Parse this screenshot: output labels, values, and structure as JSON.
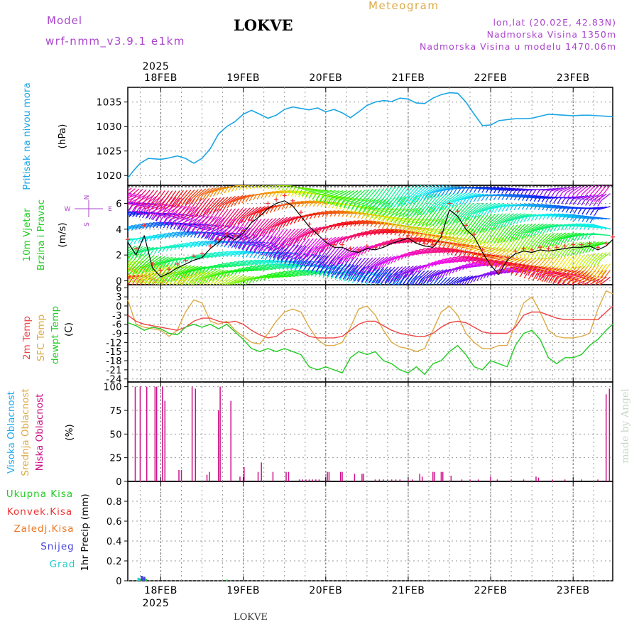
{
  "header": {
    "model_label": "Model",
    "model_name": "wrf-nmm_v3.9.1  e1km",
    "station_title": "LOKVE",
    "meteogram_label": "Meteogram",
    "coords": "lon,lat (20.02E, 42.83N)",
    "elevation": "Nadmorska Visina 1350m",
    "model_elevation": "Nadmorska Visina u modelu 1470.06m"
  },
  "footer": {
    "station": "LOKVE",
    "credit": "made by Angel"
  },
  "colors": {
    "pressure": "#1aa6e6",
    "wind_label": "#22cc22",
    "wind_speed_line": "#000000",
    "wind_gust": "#ee3333",
    "temp2m": "#ee4444",
    "sfc_temp": "#ddaa44",
    "dewpoint": "#22cc22",
    "high_cloud": "#22aaee",
    "mid_cloud": "#ddaa44",
    "low_cloud": "#cc1188",
    "total_precip": "#22cc22",
    "convective_precip": "#ee3333",
    "freezing_precip": "#ee7722",
    "snow": "#4444dd",
    "hail": "#22cccc",
    "header_purple": "#aa44cc",
    "meteogram_gold": "#ddaa44"
  },
  "chart_data": [
    {
      "type": "line",
      "panel": "pressure",
      "ylabel_lines": [
        "Pritisak na nivou mora"
      ],
      "unit": "(hPa)",
      "ylim": [
        1018,
        1038
      ],
      "yticks": [
        1020,
        1025,
        1030,
        1035
      ],
      "x_range_days": [
        17.6,
        23.48
      ],
      "x_ticks_top": [
        "18FEB",
        "19FEB",
        "20FEB",
        "21FEB",
        "22FEB",
        "23FEB"
      ],
      "x_ticks_bottom": [
        "18FEB",
        "19FEB",
        "20FEB",
        "21FEB",
        "22FEB",
        "23FEB"
      ],
      "year_label": "2025",
      "grid": true,
      "series": [
        {
          "x": [
            17.6,
            17.67,
            17.75,
            17.85,
            18.0,
            18.1,
            18.2,
            18.3,
            18.4,
            18.5,
            18.6,
            18.7,
            18.8,
            18.9,
            19.0,
            19.1,
            19.2,
            19.3,
            19.4,
            19.5,
            19.6,
            19.7,
            19.8,
            19.9,
            20.0,
            20.1,
            20.2,
            20.3,
            20.4,
            20.5,
            20.6,
            20.7,
            20.8,
            20.9,
            21.0,
            21.1,
            21.2,
            21.3,
            21.4,
            21.5,
            21.6,
            21.7,
            21.8,
            21.9,
            22.0,
            22.1,
            22.2,
            22.3,
            22.4,
            22.5,
            22.6,
            22.7,
            22.8,
            22.9,
            23.0,
            23.1,
            23.2,
            23.3,
            23.4,
            23.48
          ],
          "y": [
            1019.5,
            1021,
            1022.5,
            1023.5,
            1023.3,
            1023.6,
            1024,
            1023.5,
            1022.5,
            1023.5,
            1025.5,
            1028.5,
            1030,
            1031,
            1032.5,
            1033.3,
            1032.5,
            1031.7,
            1032.3,
            1033.5,
            1034,
            1033.7,
            1033.4,
            1033.8,
            1033,
            1033.5,
            1032.8,
            1031.8,
            1033,
            1034.3,
            1035,
            1035.3,
            1035.1,
            1035.8,
            1035.6,
            1034.8,
            1034.7,
            1035.8,
            1036.5,
            1036.9,
            1036.8,
            1035,
            1032.5,
            1030.2,
            1030.3,
            1031.2,
            1031.4,
            1031.6,
            1031.6,
            1031.7,
            1032.1,
            1032.5,
            1032.4,
            1032.3,
            1032.2,
            1032.3,
            1032.3,
            1032.2,
            1032.1,
            1032
          ]
        }
      ]
    },
    {
      "type": "line",
      "panel": "wind",
      "ylabel_lines": [
        "10m Vjetar",
        "Brzina i Pravac"
      ],
      "unit": "(m/s)",
      "direction_key": [
        "N",
        "E",
        "W",
        "S"
      ],
      "ylim": [
        -0.3,
        7.4
      ],
      "yticks": [
        0,
        2,
        4,
        6
      ],
      "grid": true,
      "series": [
        {
          "name": "speed",
          "x": [
            17.6,
            17.7,
            17.8,
            17.9,
            18.0,
            18.1,
            18.2,
            18.3,
            18.4,
            18.5,
            18.6,
            18.7,
            18.8,
            18.9,
            19.0,
            19.1,
            19.2,
            19.3,
            19.4,
            19.5,
            19.6,
            19.7,
            19.8,
            19.9,
            20.0,
            20.1,
            20.2,
            20.3,
            20.4,
            20.5,
            20.6,
            20.7,
            20.8,
            20.9,
            21.0,
            21.1,
            21.2,
            21.3,
            21.4,
            21.5,
            21.6,
            21.7,
            21.8,
            21.9,
            22.0,
            22.1,
            22.2,
            22.3,
            22.4,
            22.5,
            22.6,
            22.7,
            22.8,
            22.9,
            23.0,
            23.1,
            23.2,
            23.3,
            23.4,
            23.48
          ],
          "y": [
            3,
            2,
            3.5,
            1,
            0.3,
            0.6,
            1,
            1.3,
            1.6,
            1.8,
            2.5,
            3,
            3.5,
            3.2,
            3.7,
            4.5,
            5,
            5.6,
            6,
            6.2,
            5.8,
            5,
            4.2,
            3.6,
            3,
            2.6,
            2.6,
            2.3,
            2.2,
            2.5,
            2.4,
            2.6,
            2.9,
            3.1,
            3.3,
            2.9,
            2.7,
            2.6,
            3.4,
            5.5,
            5,
            4,
            3.4,
            2.2,
            1.2,
            0.5,
            1.6,
            2.1,
            2.3,
            2.2,
            2.4,
            2.3,
            2.4,
            2.5,
            2.6,
            2.6,
            2.7,
            2.4,
            2.7,
            3.2
          ]
        },
        {
          "name": "gust",
          "x": [
            17.6,
            17.7,
            17.8,
            17.9,
            18.0,
            18.1,
            18.2,
            18.3,
            18.4,
            18.5,
            18.6,
            18.7,
            18.8,
            18.9,
            19.0,
            19.1,
            19.2,
            19.3,
            19.4,
            19.5,
            19.6,
            19.7,
            19.8,
            19.9,
            20.0,
            20.1,
            20.2,
            20.3,
            20.4,
            20.5,
            20.6,
            20.7,
            20.8,
            20.9,
            21.0,
            21.1,
            21.2,
            21.3,
            21.4,
            21.5,
            21.6,
            21.7,
            21.8,
            21.9,
            22.0,
            22.1,
            22.2,
            22.3,
            22.4,
            22.5,
            22.6,
            22.7,
            22.8,
            22.9,
            23.0,
            23.1,
            23.2,
            23.3,
            23.4,
            23.48
          ],
          "y": [
            3.2,
            2.5,
            4.3,
            1.3,
            0.8,
            0.9,
            1.3,
            1.6,
            1.9,
            2.1,
            2.7,
            3.2,
            3.6,
            3.5,
            3.9,
            4.7,
            5.3,
            6,
            6.3,
            6.6,
            6.2,
            5.3,
            4.4,
            3.8,
            3.2,
            2.8,
            2.8,
            2.5,
            2.4,
            2.7,
            2.6,
            2.8,
            3.1,
            3.3,
            3.5,
            3.1,
            2.9,
            2.8,
            3.7,
            6,
            5.4,
            4.3,
            3.6,
            2.4,
            1.4,
            0.7,
            1.8,
            2.3,
            2.5,
            2.4,
            2.6,
            2.5,
            2.6,
            2.7,
            2.8,
            2.8,
            2.9,
            2.6,
            2.9,
            3.4
          ]
        }
      ]
    },
    {
      "type": "line",
      "panel": "temperature",
      "ylabel_lines": [
        "2m Temp",
        "SFC Temp",
        "dewpt Temp"
      ],
      "unit": "(C)",
      "ylim": [
        -25,
        7
      ],
      "yticks": [
        6,
        3,
        0,
        -3,
        -6,
        -9,
        -12,
        -15,
        -18,
        -21,
        -24
      ],
      "grid": true,
      "series": [
        {
          "name": "2m Temp",
          "x": [
            17.6,
            17.7,
            17.8,
            17.9,
            18.0,
            18.1,
            18.2,
            18.3,
            18.4,
            18.5,
            18.6,
            18.7,
            18.8,
            18.9,
            19.0,
            19.1,
            19.2,
            19.3,
            19.4,
            19.5,
            19.6,
            19.7,
            19.8,
            19.9,
            20.0,
            20.1,
            20.2,
            20.3,
            20.4,
            20.5,
            20.6,
            20.7,
            20.8,
            20.9,
            21.0,
            21.1,
            21.2,
            21.3,
            21.4,
            21.5,
            21.6,
            21.7,
            21.8,
            21.9,
            22.0,
            22.1,
            22.2,
            22.3,
            22.4,
            22.5,
            22.6,
            22.7,
            22.8,
            22.9,
            23.0,
            23.1,
            23.2,
            23.3,
            23.4,
            23.48
          ],
          "y": [
            -3,
            -5,
            -6,
            -6.5,
            -7,
            -7.5,
            -8,
            -7,
            -5,
            -4,
            -4,
            -5,
            -5.5,
            -5,
            -6,
            -8,
            -9.5,
            -10.5,
            -10,
            -8,
            -7.5,
            -8.5,
            -10,
            -10.5,
            -10.5,
            -10.5,
            -10,
            -8,
            -6,
            -5,
            -5,
            -6.5,
            -8,
            -9,
            -9.5,
            -10,
            -10,
            -9,
            -7,
            -5.5,
            -5,
            -5.5,
            -7,
            -8.5,
            -9,
            -9,
            -9,
            -7,
            -3,
            -2,
            -2,
            -3,
            -4,
            -4.5,
            -4.5,
            -4.5,
            -4.5,
            -4.5,
            -2,
            0
          ]
        },
        {
          "name": "SFC Temp",
          "x": [
            17.6,
            17.7,
            17.8,
            17.9,
            18.0,
            18.1,
            18.2,
            18.3,
            18.4,
            18.5,
            18.6,
            18.7,
            18.8,
            18.9,
            19.0,
            19.1,
            19.2,
            19.3,
            19.4,
            19.5,
            19.6,
            19.7,
            19.8,
            19.9,
            20.0,
            20.1,
            20.2,
            20.3,
            20.4,
            20.5,
            20.6,
            20.7,
            20.8,
            20.9,
            21.0,
            21.1,
            21.2,
            21.3,
            21.4,
            21.5,
            21.6,
            21.7,
            21.8,
            21.9,
            22.0,
            22.1,
            22.2,
            22.3,
            22.4,
            22.5,
            22.6,
            22.7,
            22.8,
            22.9,
            23.0,
            23.1,
            23.2,
            23.3,
            23.4,
            23.48
          ],
          "y": [
            2,
            -6,
            -7,
            -7.5,
            -8,
            -10,
            -8,
            -2,
            2,
            1,
            -5,
            -6,
            -5,
            -8,
            -10,
            -12,
            -12.5,
            -9,
            -5,
            -2,
            -1,
            -2,
            -7,
            -11,
            -13,
            -13,
            -12,
            -7,
            -1,
            0,
            -3,
            -8,
            -12,
            -13.5,
            -14,
            -15,
            -14,
            -8,
            -2,
            0,
            -3,
            -9,
            -12,
            -14,
            -14,
            -13,
            -13,
            -6,
            1,
            3,
            -2,
            -8,
            -10,
            -10.5,
            -10.5,
            -10,
            -9,
            -1,
            5,
            4
          ]
        },
        {
          "name": "dewpt Temp",
          "x": [
            17.6,
            17.7,
            17.8,
            17.9,
            18.0,
            18.1,
            18.2,
            18.3,
            18.4,
            18.5,
            18.6,
            18.7,
            18.8,
            18.9,
            19.0,
            19.1,
            19.2,
            19.3,
            19.4,
            19.5,
            19.6,
            19.7,
            19.8,
            19.9,
            20.0,
            20.1,
            20.2,
            20.3,
            20.4,
            20.5,
            20.6,
            20.7,
            20.8,
            20.9,
            21.0,
            21.1,
            21.2,
            21.3,
            21.4,
            21.5,
            21.6,
            21.7,
            21.8,
            21.9,
            22.0,
            22.1,
            22.2,
            22.3,
            22.4,
            22.5,
            22.6,
            22.7,
            22.8,
            22.9,
            23.0,
            23.1,
            23.2,
            23.3,
            23.4,
            23.48
          ],
          "y": [
            -5.5,
            -6.5,
            -8,
            -7,
            -7.5,
            -9,
            -9.5,
            -7,
            -6,
            -7,
            -6,
            -7.5,
            -6,
            -8.5,
            -11,
            -14,
            -15,
            -14,
            -15,
            -14,
            -15,
            -16,
            -20,
            -21,
            -20,
            -21,
            -22,
            -17,
            -15,
            -16,
            -15,
            -18,
            -19,
            -21,
            -22,
            -20,
            -22.5,
            -19,
            -18,
            -15,
            -13,
            -16,
            -20,
            -21,
            -18,
            -19,
            -20,
            -13,
            -9,
            -8,
            -11,
            -17,
            -19,
            -17,
            -17,
            -16,
            -13,
            -11,
            -8,
            -6
          ]
        }
      ]
    },
    {
      "type": "bar",
      "panel": "cloud",
      "ylabel_lines": [
        "Visoka Oblacnost",
        "Srednja Oblacnost",
        "Niska Oblacnost"
      ],
      "unit": "(%)",
      "ylim": [
        0,
        105
      ],
      "yticks": [
        0,
        25,
        50,
        75,
        100
      ],
      "grid": true,
      "series": [
        {
          "name": "Niska Oblacnost",
          "x": [
            17.69,
            17.75,
            17.83,
            17.93,
            17.95,
            18.02,
            18.05,
            18.22,
            18.25,
            18.38,
            18.42,
            18.56,
            18.59,
            18.7,
            18.72,
            18.85,
            18.96,
            19.01,
            19.18,
            19.22,
            19.36,
            19.52,
            19.55,
            19.68,
            19.72,
            19.76,
            19.8,
            19.84,
            19.88,
            19.92,
            20.02,
            20.04,
            20.18,
            20.2,
            20.35,
            20.44,
            20.46,
            20.6,
            20.65,
            20.7,
            20.75,
            20.8,
            20.85,
            20.9,
            21.0,
            21.05,
            21.14,
            21.17,
            21.3,
            21.32,
            21.4,
            21.42,
            21.52,
            21.65,
            21.75,
            21.85,
            22.0,
            22.08,
            22.25,
            22.4,
            22.55,
            22.58,
            22.75,
            22.9,
            23.1,
            23.3,
            23.4,
            23.44
          ],
          "y": [
            100,
            100,
            100,
            100,
            100,
            100,
            85,
            12,
            12,
            100,
            98,
            7,
            10,
            75,
            100,
            85,
            5,
            15,
            10,
            20,
            10,
            10,
            10,
            2,
            2,
            2,
            2,
            2,
            2,
            2,
            10,
            10,
            10,
            10,
            8,
            8,
            8,
            2,
            2,
            2,
            2,
            2,
            2,
            2,
            2,
            2,
            8,
            5,
            10,
            10,
            10,
            10,
            6,
            2,
            2,
            2,
            5,
            2,
            2,
            2,
            5,
            4,
            2,
            2,
            2,
            2,
            92,
            98
          ]
        }
      ]
    },
    {
      "type": "bar",
      "panel": "precip",
      "ylabel_lines": [
        "Ukupna Kisa",
        "Konvek.Kisa",
        "Zaledj.Kisa",
        "Snijeg",
        "Grad"
      ],
      "ylabel_side": "1hr Precip (mm)",
      "ylim": [
        0,
        1
      ],
      "yticks": [
        0,
        0.2,
        0.4,
        0.6,
        0.8
      ],
      "grid": true,
      "series": [
        {
          "name": "Ukupna Kisa",
          "x": [
            17.75,
            17.79,
            17.82,
            18.8
          ],
          "y": [
            0.02,
            0.03,
            0.02,
            0.01
          ]
        },
        {
          "name": "Snijeg",
          "x": [
            17.77,
            17.8
          ],
          "y": [
            0.05,
            0.04
          ]
        },
        {
          "name": "Grad",
          "x": [
            17.73
          ],
          "y": [
            0.03
          ]
        }
      ]
    }
  ]
}
